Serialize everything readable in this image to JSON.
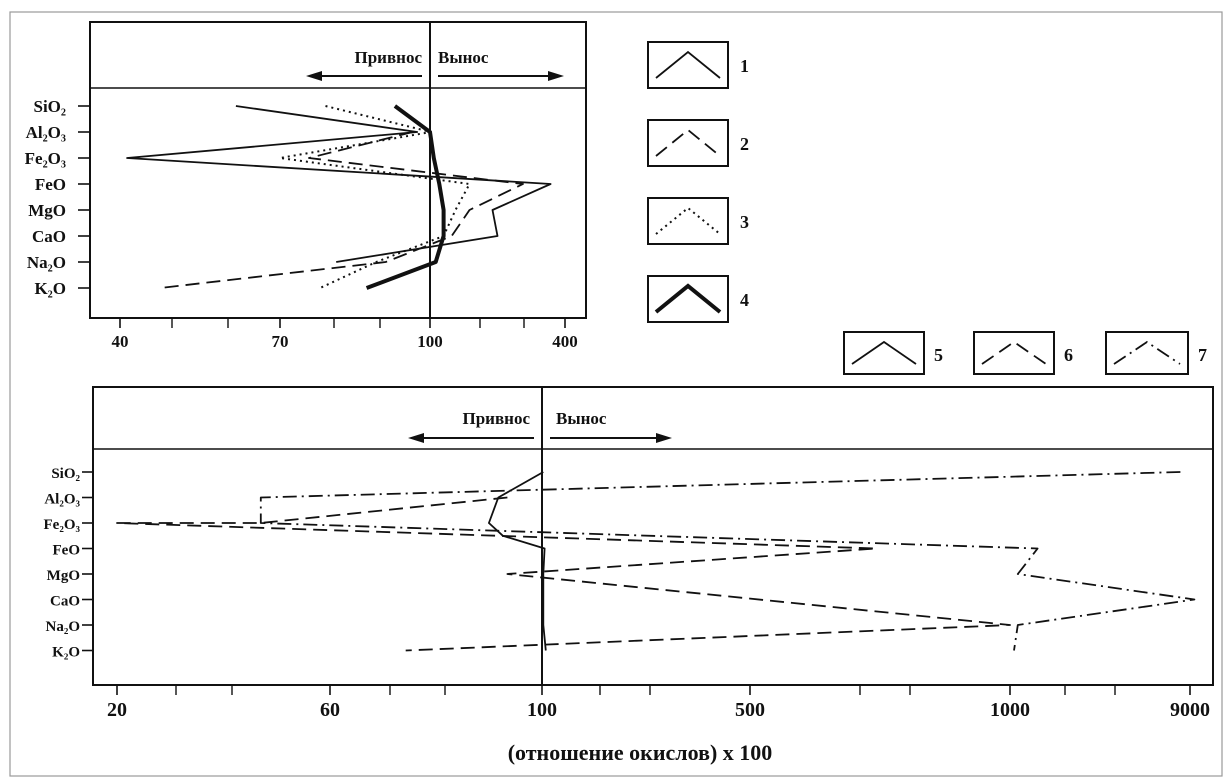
{
  "chart_data": [
    {
      "type": "line",
      "title": "",
      "direction_labels": {
        "left": "Привнос",
        "right": "Вынос"
      },
      "categories": [
        "SiO2",
        "Al2O3",
        "Fe2O3",
        "FeO",
        "MgO",
        "CaO",
        "Na2O",
        "K2O"
      ],
      "category_labels": [
        "SiO₂",
        "Al₂O₃",
        "Fe₂O₃",
        "FeO",
        "MgO",
        "CaO",
        "Na₂O",
        "K₂O"
      ],
      "x_ticks": [
        "40",
        "70",
        "100",
        "400"
      ],
      "x_tick_values": [
        40,
        70,
        100,
        400
      ],
      "reference_value": 100,
      "legend_position": "right",
      "series": [
        {
          "name": "1",
          "style": "solid",
          "points": [
            [
              60,
              0
            ],
            [
              97,
              1
            ],
            [
              41,
              2
            ],
            [
              345,
              3
            ],
            [
              190,
              4
            ],
            [
              200,
              5
            ],
            [
              80,
              6
            ]
          ]
        },
        {
          "name": "2",
          "style": "dashed",
          "points": [
            [
              96,
              1
            ],
            [
              75,
              2
            ],
            [
              260,
              3
            ],
            [
              150,
              4
            ],
            [
              125,
              5
            ],
            [
              90,
              6
            ],
            [
              46,
              7
            ]
          ]
        },
        {
          "name": "3",
          "style": "dotted",
          "points": [
            [
              78,
              0
            ],
            [
              101,
              1
            ],
            [
              70,
              2
            ],
            [
              150,
              3
            ],
            [
              130,
              4
            ],
            [
              115,
              5
            ],
            [
              88,
              6
            ],
            [
              77,
              7
            ]
          ]
        },
        {
          "name": "4",
          "style": "thick",
          "points": [
            [
              92,
              0
            ],
            [
              100,
              1
            ],
            [
              104,
              2
            ],
            [
              110,
              3
            ],
            [
              115,
              4
            ],
            [
              115,
              5
            ],
            [
              106,
              6
            ],
            [
              86,
              7
            ]
          ]
        }
      ]
    },
    {
      "type": "line",
      "title": "",
      "direction_labels": {
        "left": "Привнос",
        "right": "Вынос"
      },
      "categories": [
        "SiO2",
        "Al2O3",
        "Fe2O3",
        "FeO",
        "MgO",
        "CaO",
        "Na2O",
        "K2O"
      ],
      "category_labels": [
        "SiO₂",
        "Al₂O₃",
        "Fe₂O₃",
        "FeO",
        "MgO",
        "CaO",
        "Na₂O",
        "K₂O"
      ],
      "x_ticks": [
        "20",
        "60",
        "100",
        "500",
        "1000",
        "9000"
      ],
      "x_tick_values": [
        20,
        60,
        100,
        500,
        1000,
        9000
      ],
      "xlabel": "(отношение окислов) х 100",
      "reference_value": 100,
      "legend_position": "top-right",
      "series": [
        {
          "name": "5",
          "style": "solid",
          "points": [
            [
              101,
              0
            ],
            [
              90,
              1
            ],
            [
              88,
              2
            ],
            [
              91,
              2.5
            ],
            [
              102,
              3
            ],
            [
              101,
              4
            ],
            [
              101,
              5
            ],
            [
              101,
              6
            ],
            [
              103,
              7
            ]
          ]
        },
        {
          "name": "6",
          "style": "dashed",
          "points": [
            [
              92,
              1
            ],
            [
              42,
              2
            ],
            [
              20,
              2
            ],
            [
              700,
              3
            ],
            [
              92,
              4
            ],
            [
              1000,
              6
            ],
            [
              72,
              7
            ]
          ]
        },
        {
          "name": "7",
          "style": "dash-dot",
          "points": [
            [
              8000,
              0
            ],
            [
              42,
              1
            ],
            [
              42,
              2
            ],
            [
              1400,
              3
            ],
            [
              1100,
              4
            ],
            [
              9500,
              5
            ],
            [
              1100,
              6
            ],
            [
              1050,
              7
            ]
          ]
        }
      ]
    }
  ],
  "legend": [
    {
      "label": "1",
      "style": "solid"
    },
    {
      "label": "2",
      "style": "dashed"
    },
    {
      "label": "3",
      "style": "dotted"
    },
    {
      "label": "4",
      "style": "thick"
    },
    {
      "label": "5",
      "style": "solid"
    },
    {
      "label": "6",
      "style": "dashed"
    },
    {
      "label": "7",
      "style": "dash-dot"
    }
  ]
}
